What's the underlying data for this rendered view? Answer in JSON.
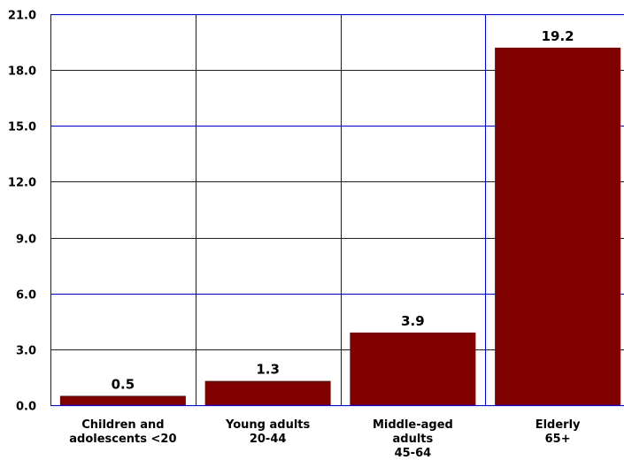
{
  "chart_data": {
    "type": "bar",
    "categories": [
      [
        "Children and",
        "adolescents <20"
      ],
      [
        "Young adults",
        "20-44"
      ],
      [
        "Middle-aged",
        "adults",
        "45-64"
      ],
      [
        "Elderly",
        "65+"
      ]
    ],
    "values": [
      0.5,
      1.3,
      3.9,
      19.2
    ],
    "data_labels": [
      "0.5",
      "1.3",
      "3.9",
      "19.2"
    ],
    "y_ticks": [
      "0.0",
      "3.0",
      "6.0",
      "9.0",
      "12.0",
      "15.0",
      "18.0",
      "21.0"
    ],
    "ylim": [
      0,
      21
    ],
    "grid": true,
    "colors": {
      "bar": "#800000",
      "grid": "#0000ff",
      "text": "#000000"
    }
  }
}
